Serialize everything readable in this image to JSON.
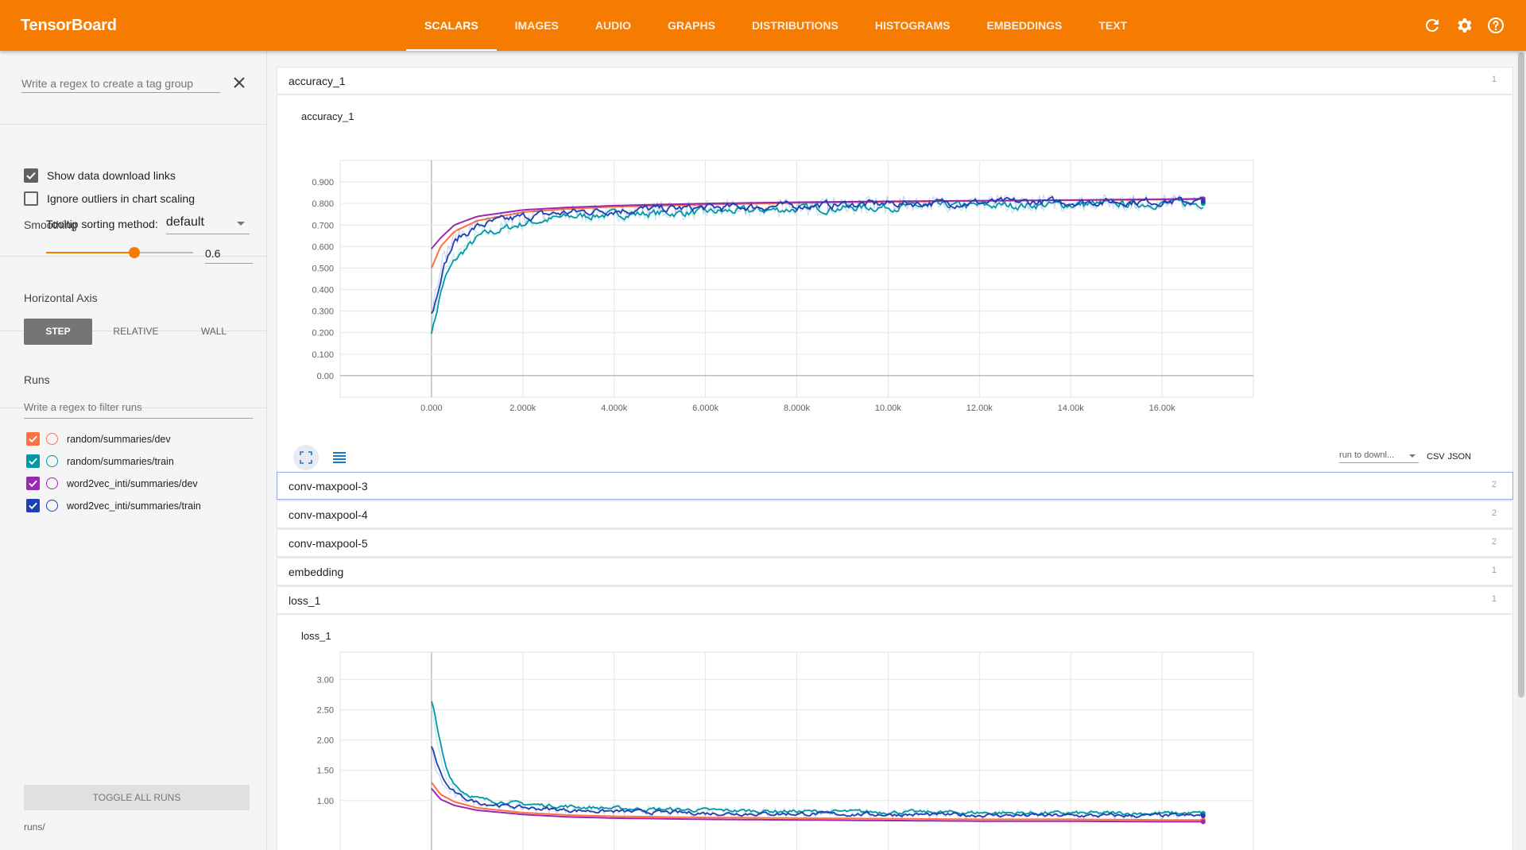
{
  "app": {
    "title": "TensorBoard"
  },
  "nav": {
    "tabs": [
      {
        "label": "SCALARS"
      },
      {
        "label": "IMAGES"
      },
      {
        "label": "AUDIO"
      },
      {
        "label": "GRAPHS"
      },
      {
        "label": "DISTRIBUTIONS"
      },
      {
        "label": "HISTOGRAMS"
      },
      {
        "label": "EMBEDDINGS"
      },
      {
        "label": "TEXT"
      }
    ],
    "active_tab": "SCALARS",
    "icons": [
      "refresh-icon",
      "gear-icon",
      "help-icon"
    ]
  },
  "sidebar": {
    "tag_regex_placeholder": "Write a regex to create a tag group",
    "show_download_links": {
      "label": "Show data download links",
      "checked": true
    },
    "ignore_outliers": {
      "label": "Ignore outliers in chart scaling",
      "checked": false
    },
    "tooltip_sorting": {
      "label": "Tooltip sorting method:",
      "value": "default"
    },
    "smoothing": {
      "label": "Smoothing",
      "value": "0.6",
      "fraction": 0.6
    },
    "horizontal_axis": {
      "label": "Horizontal Axis",
      "options": [
        {
          "label": "STEP"
        },
        {
          "label": "RELATIVE"
        },
        {
          "label": "WALL"
        }
      ],
      "selected": "STEP"
    },
    "runs": {
      "label": "Runs",
      "filter_placeholder": "Write a regex to filter runs",
      "items": [
        {
          "name": "random/summaries/dev",
          "color": "#ff7043",
          "checked": true
        },
        {
          "name": "random/summaries/train",
          "color": "#0097a7",
          "checked": true
        },
        {
          "name": "word2vec_inti/summaries/dev",
          "color": "#9c27b0",
          "checked": true
        },
        {
          "name": "word2vec_inti/summaries/train",
          "color": "#1e3fb4",
          "checked": true
        }
      ]
    },
    "toggle_all_label": "TOGGLE ALL RUNS",
    "runs_path": "runs/"
  },
  "main": {
    "categories": [
      {
        "name": "accuracy_1",
        "count": "1",
        "expanded": true
      },
      {
        "name": "conv-maxpool-3",
        "count": "2",
        "focused": true
      },
      {
        "name": "conv-maxpool-4",
        "count": "2"
      },
      {
        "name": "conv-maxpool-5",
        "count": "2"
      },
      {
        "name": "embedding",
        "count": "1"
      },
      {
        "name": "loss_1",
        "count": "1",
        "expanded": true
      }
    ],
    "download": {
      "select_value": "run to downl...",
      "csv": "CSV",
      "json": "JSON"
    }
  },
  "chart_data": [
    {
      "type": "line",
      "title": "accuracy_1",
      "xlabel": "",
      "ylabel": "",
      "xlim": [
        -2000,
        18000
      ],
      "ylim": [
        -0.1,
        1.0
      ],
      "x_ticks": [
        "0.000",
        "2.000k",
        "4.000k",
        "6.000k",
        "8.000k",
        "10.00k",
        "12.00k",
        "14.00k",
        "16.00k"
      ],
      "y_ticks": [
        "0.00",
        "0.100",
        "0.200",
        "0.300",
        "0.400",
        "0.500",
        "0.600",
        "0.700",
        "0.800",
        "0.900"
      ],
      "grid": true,
      "series": [
        {
          "name": "random/summaries/dev",
          "color": "#ff7043",
          "x": [
            0,
            200,
            500,
            1000,
            2000,
            3000,
            4000,
            6000,
            8000,
            10000,
            12000,
            14000,
            16000,
            16900
          ],
          "y": [
            0.5,
            0.6,
            0.67,
            0.72,
            0.76,
            0.775,
            0.785,
            0.795,
            0.803,
            0.808,
            0.812,
            0.815,
            0.818,
            0.82
          ]
        },
        {
          "name": "random/summaries/train",
          "color": "#0097a7",
          "x": [
            0,
            200,
            500,
            1000,
            2000,
            3000,
            4000,
            6000,
            8000,
            10000,
            12000,
            14000,
            16000,
            16900
          ],
          "y": [
            0.23,
            0.45,
            0.55,
            0.65,
            0.71,
            0.74,
            0.75,
            0.76,
            0.775,
            0.785,
            0.79,
            0.795,
            0.8,
            0.8
          ]
        },
        {
          "name": "word2vec_inti/summaries/dev",
          "color": "#9c27b0",
          "x": [
            0,
            200,
            500,
            1000,
            2000,
            3000,
            4000,
            6000,
            8000,
            10000,
            12000,
            14000,
            16000,
            16900
          ],
          "y": [
            0.59,
            0.64,
            0.7,
            0.74,
            0.77,
            0.782,
            0.79,
            0.8,
            0.806,
            0.81,
            0.813,
            0.816,
            0.82,
            0.822
          ]
        },
        {
          "name": "word2vec_inti/summaries/train",
          "color": "#1e3fb4",
          "x": [
            0,
            200,
            500,
            1000,
            2000,
            3000,
            4000,
            6000,
            8000,
            10000,
            12000,
            14000,
            16000,
            16900
          ],
          "y": [
            0.3,
            0.52,
            0.64,
            0.7,
            0.74,
            0.76,
            0.77,
            0.78,
            0.79,
            0.8,
            0.805,
            0.808,
            0.81,
            0.81
          ]
        }
      ]
    },
    {
      "type": "line",
      "title": "loss_1",
      "xlabel": "",
      "ylabel": "",
      "xlim": [
        -2000,
        18000
      ],
      "ylim": [
        0.0,
        3.45
      ],
      "y_ticks": [
        "1.00",
        "1.50",
        "2.00",
        "2.50",
        "3.00"
      ],
      "grid": true,
      "series": [
        {
          "name": "random/summaries/dev",
          "color": "#ff7043",
          "x": [
            0,
            200,
            500,
            1000,
            2000,
            3000,
            4000,
            6000,
            8000,
            10000,
            12000,
            14000,
            16000,
            16900
          ],
          "y": [
            1.3,
            1.1,
            0.98,
            0.88,
            0.8,
            0.76,
            0.74,
            0.72,
            0.71,
            0.7,
            0.69,
            0.69,
            0.68,
            0.68
          ]
        },
        {
          "name": "random/summaries/train",
          "color": "#0097a7",
          "x": [
            0,
            100,
            300,
            600,
            1000,
            2000,
            3000,
            4000,
            6000,
            8000,
            10000,
            12000,
            14000,
            16000,
            16900
          ],
          "y": [
            2.7,
            2.0,
            1.4,
            1.15,
            1.02,
            0.94,
            0.9,
            0.87,
            0.84,
            0.82,
            0.81,
            0.8,
            0.79,
            0.79,
            0.79
          ]
        },
        {
          "name": "word2vec_inti/summaries/dev",
          "color": "#9c27b0",
          "x": [
            0,
            200,
            500,
            1000,
            2000,
            3000,
            4000,
            6000,
            8000,
            10000,
            12000,
            14000,
            16000,
            16900
          ],
          "y": [
            1.2,
            1.02,
            0.92,
            0.84,
            0.77,
            0.73,
            0.71,
            0.69,
            0.68,
            0.67,
            0.66,
            0.66,
            0.65,
            0.65
          ]
        },
        {
          "name": "word2vec_inti/summaries/train",
          "color": "#1e3fb4",
          "x": [
            0,
            100,
            300,
            600,
            1000,
            2000,
            3000,
            4000,
            6000,
            8000,
            10000,
            12000,
            14000,
            16000,
            16900
          ],
          "y": [
            1.85,
            1.5,
            1.2,
            1.05,
            0.96,
            0.88,
            0.84,
            0.82,
            0.79,
            0.78,
            0.77,
            0.76,
            0.75,
            0.75,
            0.75
          ]
        }
      ]
    }
  ]
}
